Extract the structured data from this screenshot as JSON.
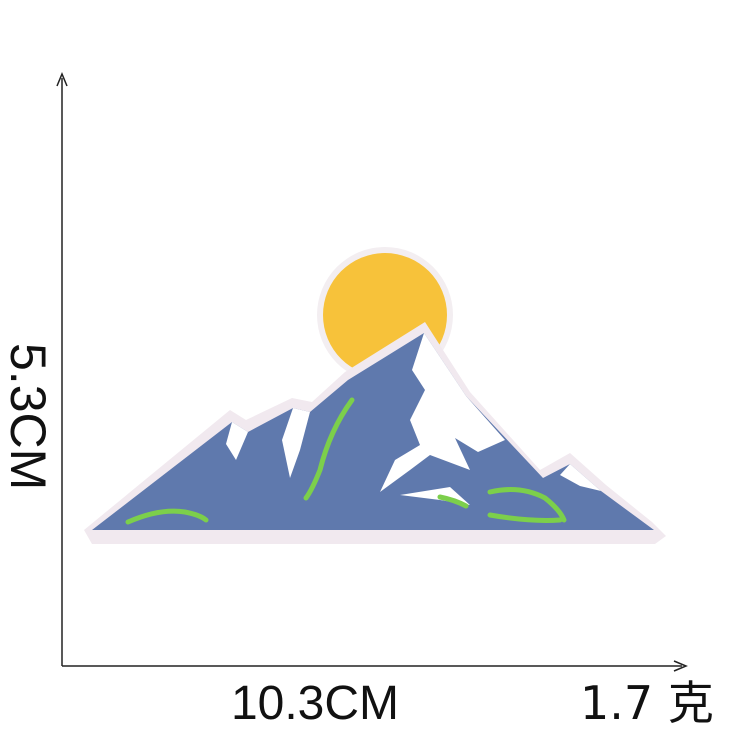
{
  "dimensions": {
    "height_label": "5.3CM",
    "width_label": "10.3CM",
    "weight_label": "1.7 克"
  },
  "colors": {
    "mountain": "#5f79ad",
    "snow": "#ffffff",
    "sun": "#f7c23a",
    "grass": "#7ccf4b",
    "outline": "#f0e8ef"
  }
}
